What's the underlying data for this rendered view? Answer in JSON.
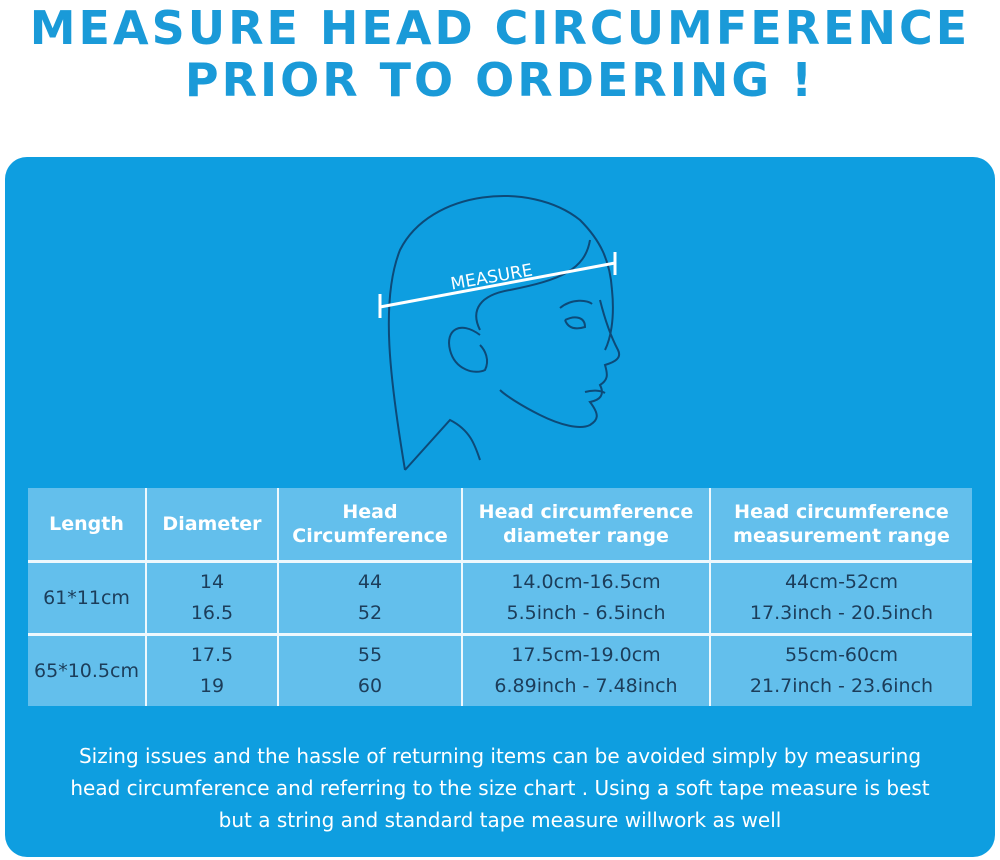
{
  "title": {
    "line1": "MEASURE HEAD CIRCUMFERENCE",
    "line2": "PRIOR TO ORDERING !"
  },
  "illustration": {
    "label": "MEASURE"
  },
  "colors": {
    "title": "#1a9ad8",
    "panel": "#0e9ee0",
    "table_cell": "#63bfec",
    "line_art": "#0d4a78"
  },
  "table": {
    "headers": [
      [
        "Length"
      ],
      [
        "Diameter"
      ],
      [
        "Head",
        "Circumference"
      ],
      [
        "Head circumference",
        "diameter range"
      ],
      [
        "Head circumference",
        "measurement range"
      ]
    ],
    "rows": [
      {
        "length": "61*11cm",
        "diameter": [
          "14",
          "16.5"
        ],
        "head": [
          "44",
          "52"
        ],
        "diam_range": [
          "14.0cm-16.5cm",
          "5.5inch - 6.5inch"
        ],
        "meas_range": [
          "44cm-52cm",
          "17.3inch - 20.5inch"
        ]
      },
      {
        "length": "65*10.5cm",
        "diameter": [
          "17.5",
          "19"
        ],
        "head": [
          "55",
          "60"
        ],
        "diam_range": [
          "17.5cm-19.0cm",
          "6.89inch - 7.48inch"
        ],
        "meas_range": [
          "55cm-60cm",
          "21.7inch - 23.6inch"
        ]
      }
    ]
  },
  "note": [
    "Sizing issues and the hassle of returning items can be avoided simply by measuring",
    "head circumference and referring to the size chart . Using a soft tape measure is best",
    "but a string and standard tape measure willwork as well"
  ]
}
